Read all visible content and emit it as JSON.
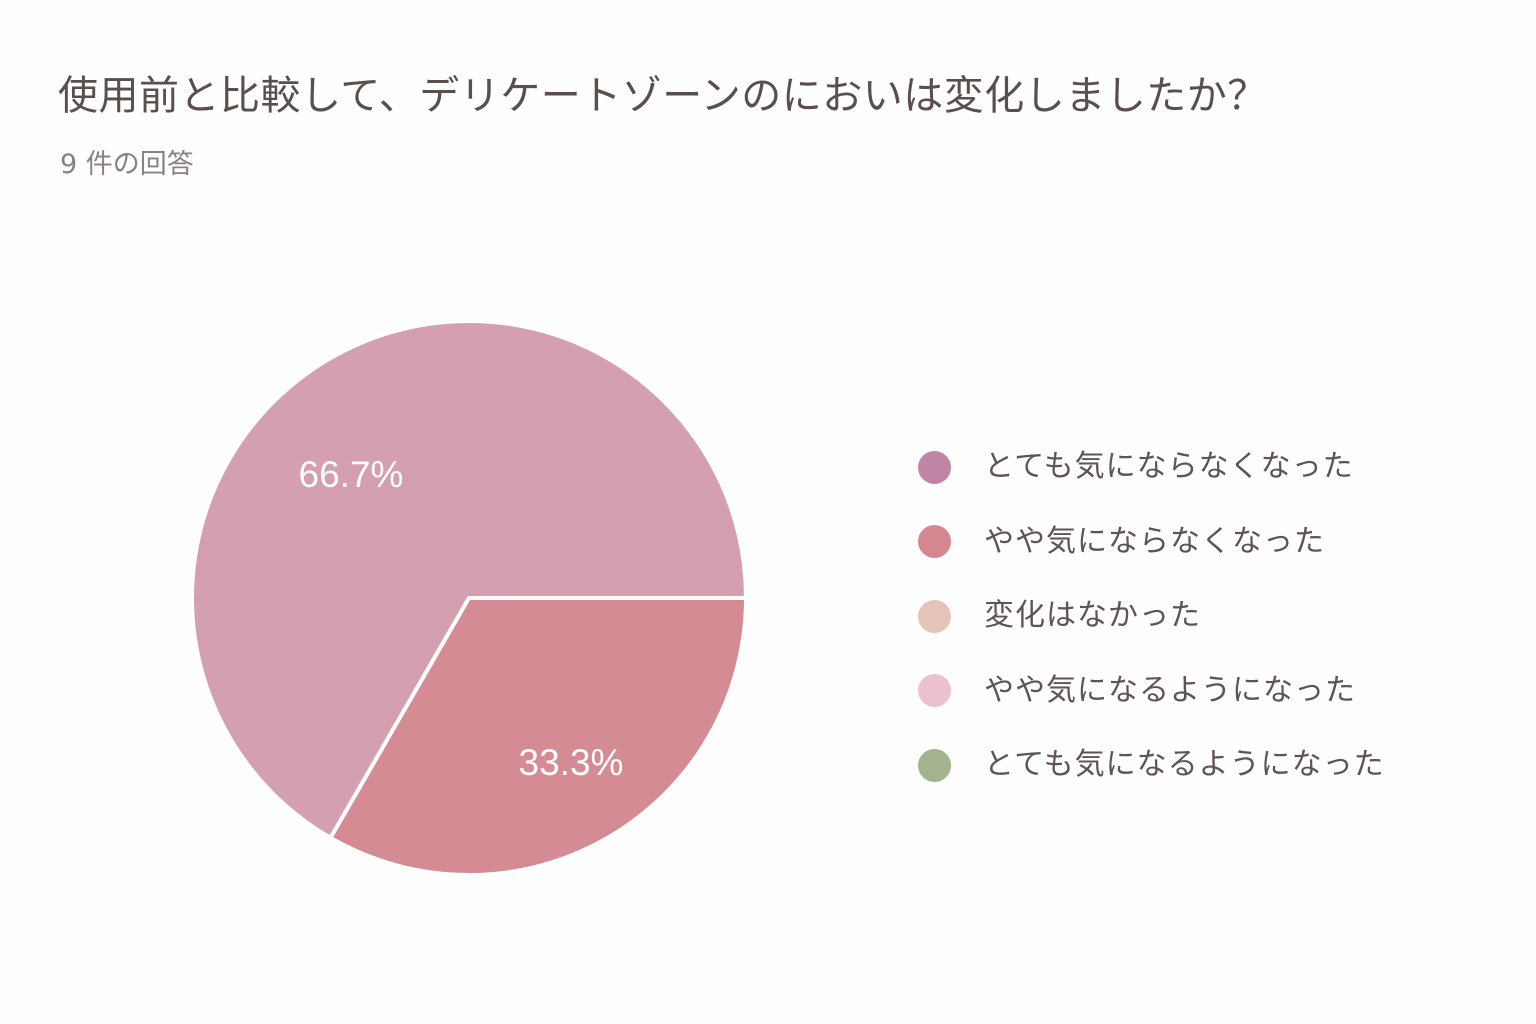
{
  "header": {
    "title": "使用前と比較して、デリケートゾーンのにおいは変化しましたか？",
    "response_count": "9 件の回答"
  },
  "chart_data": {
    "type": "pie",
    "title": "使用前と比較して、デリケートゾーンのにおいは変化しましたか？",
    "total_responses": 9,
    "categories": [
      "とても気にならなくなった",
      "やや気にならなくなった",
      "変化はなかった",
      "やや気になるようになった",
      "とても気になるようになった"
    ],
    "values": [
      6,
      3,
      0,
      0,
      0
    ],
    "percent_labels": [
      "66.7%",
      "33.3%",
      "",
      "",
      ""
    ],
    "colors": [
      "#c084a5",
      "#d5868f",
      "#e5c3b6",
      "#ebc1cf",
      "#a2b38e"
    ],
    "slice_fill_colors": [
      "#d49fae",
      "#d58b94",
      "#e5c3b6",
      "#ebc1cf",
      "#a2b38e"
    ],
    "legend_position": "right"
  }
}
